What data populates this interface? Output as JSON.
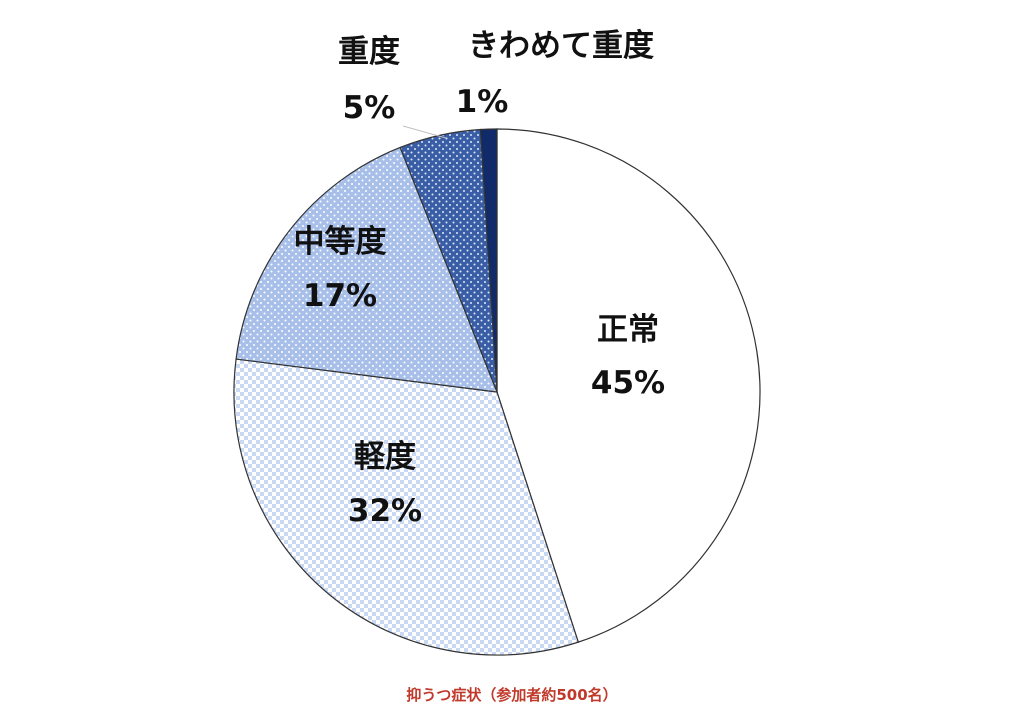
{
  "chart_data": {
    "type": "pie",
    "start": "12 o'clock",
    "direction": "clockwise",
    "slices": [
      {
        "name": "正常",
        "percent_label": "45%",
        "value": 45,
        "fill": "#ffffff",
        "pattern": "none"
      },
      {
        "name": "軽度",
        "percent_label": "32%",
        "value": 32,
        "fill": "#ffffff",
        "pattern": "light-blue-checker",
        "pattern_color": "#c9d8f3"
      },
      {
        "name": "中等度",
        "percent_label": "17%",
        "value": 17,
        "fill": "#a8bfe9",
        "pattern": "white-dots"
      },
      {
        "name": "重度",
        "percent_label": "5%",
        "value": 5,
        "fill": "#3a5ea6",
        "pattern": "white-dots"
      },
      {
        "name": "きわめて重度",
        "percent_label": "1%",
        "value": 1,
        "fill": "#102a6a",
        "pattern": "none"
      }
    ],
    "legend": "none",
    "leader_line_color": "#bfbfbf"
  },
  "caption": {
    "text": "抑うつ症状（参加者約500名）",
    "color": "#c0392b"
  }
}
